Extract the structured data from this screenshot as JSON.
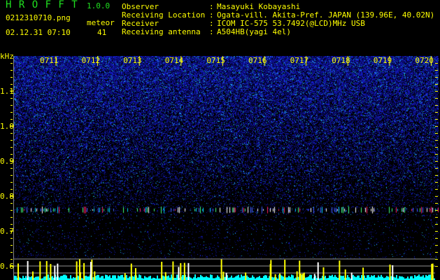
{
  "header": {
    "app_title": "H R O F F T",
    "version": "1.0.0",
    "filename": "0212310710.png",
    "datetime": "02.12.31 07:10",
    "meteor_label": "meteor",
    "meteor_count": "41"
  },
  "info": [
    {
      "label": "Observer",
      "value": "Masayuki Kobayashi"
    },
    {
      "label": "Receiving Location",
      "value": "Ogata-vill. Akita-Pref. JAPAN (139.96E, 40.02N)"
    },
    {
      "label": "Receiver",
      "value": "ICOM IC-575 53.7492(@LCD)MHz USB"
    },
    {
      "label": "Receiving antenna",
      "value": "A504HB(yagi 4el)"
    }
  ],
  "chart_data": {
    "type": "heatmap",
    "ylabel": "kHz",
    "ylim": [
      0.6,
      1.2
    ],
    "y_ticks": [
      "1.1",
      "1.0",
      "0.9",
      "0.8",
      "0.7",
      "0.6"
    ],
    "x_ticks": [
      "0711",
      "0712",
      "0713",
      "0714",
      "0715",
      "0716",
      "0717",
      "0718",
      "0719",
      "0720"
    ],
    "meteor_band_khz": 0.76,
    "colors": {
      "background": "#000000",
      "noise": "#1a28d0",
      "text": "#ffff00",
      "title": "#20e020",
      "count_bars": "#ffff00",
      "baseline": "#00ffff",
      "guide_lines": "#909090"
    }
  }
}
